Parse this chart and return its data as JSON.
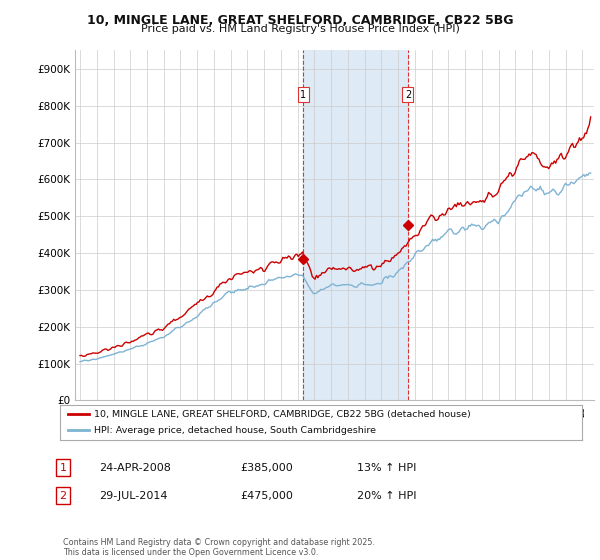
{
  "title_line1": "10, MINGLE LANE, GREAT SHELFORD, CAMBRIDGE, CB22 5BG",
  "title_line2": "Price paid vs. HM Land Registry's House Price Index (HPI)",
  "background_color": "#ffffff",
  "plot_bg_color": "#ffffff",
  "grid_color": "#cccccc",
  "red_color": "#cc0000",
  "blue_color": "#7fb3d3",
  "vline_color": "#dd3333",
  "highlight_color": "#deeaf5",
  "transaction1_label": "24-APR-2008",
  "transaction1_price": 385000,
  "transaction1_pct": "13%",
  "transaction2_label": "29-JUL-2014",
  "transaction2_price": 475000,
  "transaction2_pct": "20%",
  "ylim_max": 950000,
  "yticks": [
    0,
    100000,
    200000,
    300000,
    400000,
    500000,
    600000,
    700000,
    800000,
    900000
  ],
  "ytick_labels": [
    "£0",
    "£100K",
    "£200K",
    "£300K",
    "£400K",
    "£500K",
    "£600K",
    "£700K",
    "£800K",
    "£900K"
  ],
  "legend_label1": "10, MINGLE LANE, GREAT SHELFORD, CAMBRIDGE, CB22 5BG (detached house)",
  "legend_label2": "HPI: Average price, detached house, South Cambridgeshire",
  "footnote": "Contains HM Land Registry data © Crown copyright and database right 2025.\nThis data is licensed under the Open Government Licence v3.0."
}
